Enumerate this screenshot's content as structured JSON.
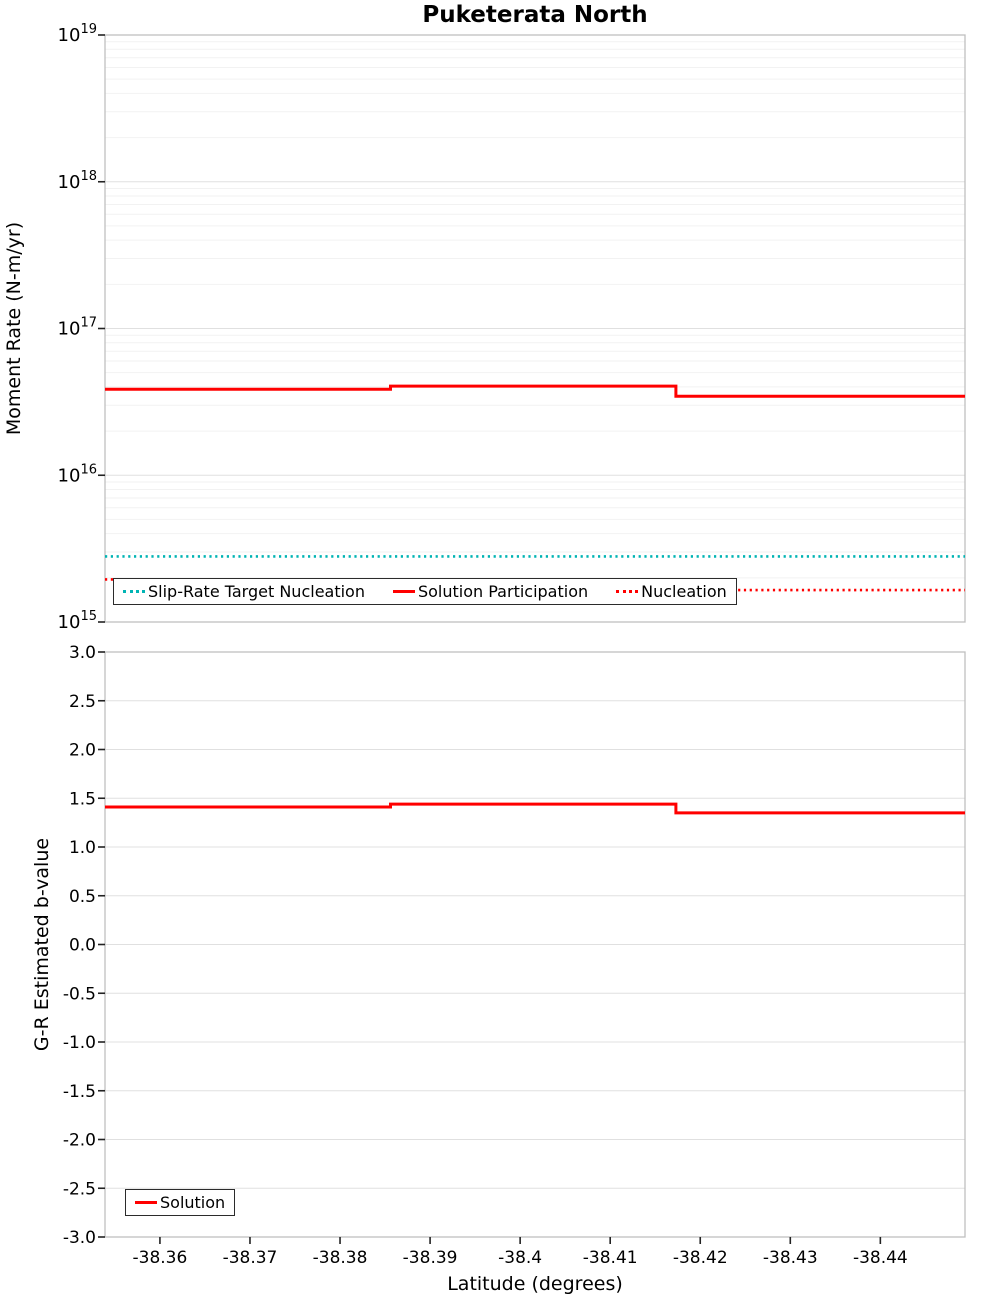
{
  "title": "Puketerata North",
  "colors": {
    "solution_red": "#ff0000",
    "target_teal": "#00b4b4",
    "grid_major": "#e0e0e0",
    "grid_minor": "#f2f2f2",
    "plot_border": "#bfbfbf",
    "tick": "#222222",
    "text": "#000000",
    "legend_border": "#2b2b2b"
  },
  "chart_data": [
    {
      "type": "line",
      "title": "Puketerata North",
      "xlabel": "",
      "ylabel": "Moment Rate (N-m/yr)",
      "yscale": "log",
      "ylim": [
        1000000000000000.0,
        1e+19
      ],
      "xlim": [
        -38.3539,
        -38.4494
      ],
      "x_axis_reversed": true,
      "grid": true,
      "yticks": [
        {
          "value": 1e+19,
          "exp": "19"
        },
        {
          "value": 1e+18,
          "exp": "18"
        },
        {
          "value": 1e+17,
          "exp": "17"
        },
        {
          "value": 1e+16,
          "exp": "16"
        },
        {
          "value": 1000000000000000.0,
          "exp": "15"
        }
      ],
      "series": [
        {
          "name": "Slip-Rate Target Nucleation",
          "color": "#00b4b4",
          "line": "dotted",
          "segments": [
            {
              "x0": -38.3539,
              "x1": -38.4494,
              "y": 2800000000000000.0
            }
          ]
        },
        {
          "name": "Solution Participation",
          "color": "#ff0000",
          "line": "solid",
          "segments": [
            {
              "x0": -38.3539,
              "x1": -38.3856,
              "y": 3.85e+16
            },
            {
              "x0": -38.3856,
              "x1": -38.4173,
              "y": 4.05e+16
            },
            {
              "x0": -38.4173,
              "x1": -38.4494,
              "y": 3.45e+16
            }
          ]
        },
        {
          "name": "Nucleation",
          "color": "#ff0000",
          "line": "dotted",
          "segments": [
            {
              "x0": -38.3539,
              "x1": -38.4173,
              "y": 1950000000000000.0
            },
            {
              "x0": -38.4173,
              "x1": -38.4494,
              "y": 1650000000000000.0
            }
          ]
        }
      ],
      "legend": {
        "position": "bottom-center"
      }
    },
    {
      "type": "line",
      "xlabel": "Latitude (degrees)",
      "ylabel": "G-R Estimated b-value",
      "yscale": "linear",
      "ylim": [
        -3.0,
        3.0
      ],
      "xlim": [
        -38.3539,
        -38.4494
      ],
      "x_axis_reversed": true,
      "grid": true,
      "yticks": [
        {
          "value": 3.0,
          "label": "3.0"
        },
        {
          "value": 2.5,
          "label": "2.5"
        },
        {
          "value": 2.0,
          "label": "2.0"
        },
        {
          "value": 1.5,
          "label": "1.5"
        },
        {
          "value": 1.0,
          "label": "1.0"
        },
        {
          "value": 0.5,
          "label": "0.5"
        },
        {
          "value": 0.0,
          "label": "0.0"
        },
        {
          "value": -0.5,
          "label": "-0.5"
        },
        {
          "value": -1.0,
          "label": "-1.0"
        },
        {
          "value": -1.5,
          "label": "-1.5"
        },
        {
          "value": -2.0,
          "label": "-2.0"
        },
        {
          "value": -2.5,
          "label": "-2.5"
        },
        {
          "value": -3.0,
          "label": "-3.0"
        }
      ],
      "xticks": [
        {
          "value": -38.36,
          "label": "-38.36"
        },
        {
          "value": -38.37,
          "label": "-38.37"
        },
        {
          "value": -38.38,
          "label": "-38.38"
        },
        {
          "value": -38.39,
          "label": "-38.39"
        },
        {
          "value": -38.4,
          "label": "-38.4"
        },
        {
          "value": -38.41,
          "label": "-38.41"
        },
        {
          "value": -38.42,
          "label": "-38.42"
        },
        {
          "value": -38.43,
          "label": "-38.43"
        },
        {
          "value": -38.44,
          "label": "-38.44"
        }
      ],
      "series": [
        {
          "name": "Solution",
          "color": "#ff0000",
          "line": "solid",
          "segments": [
            {
              "x0": -38.3539,
              "x1": -38.3856,
              "y": 1.41
            },
            {
              "x0": -38.3856,
              "x1": -38.4173,
              "y": 1.44
            },
            {
              "x0": -38.4173,
              "x1": -38.4494,
              "y": 1.35
            }
          ]
        }
      ],
      "legend": {
        "position": "bottom-left"
      }
    }
  ]
}
